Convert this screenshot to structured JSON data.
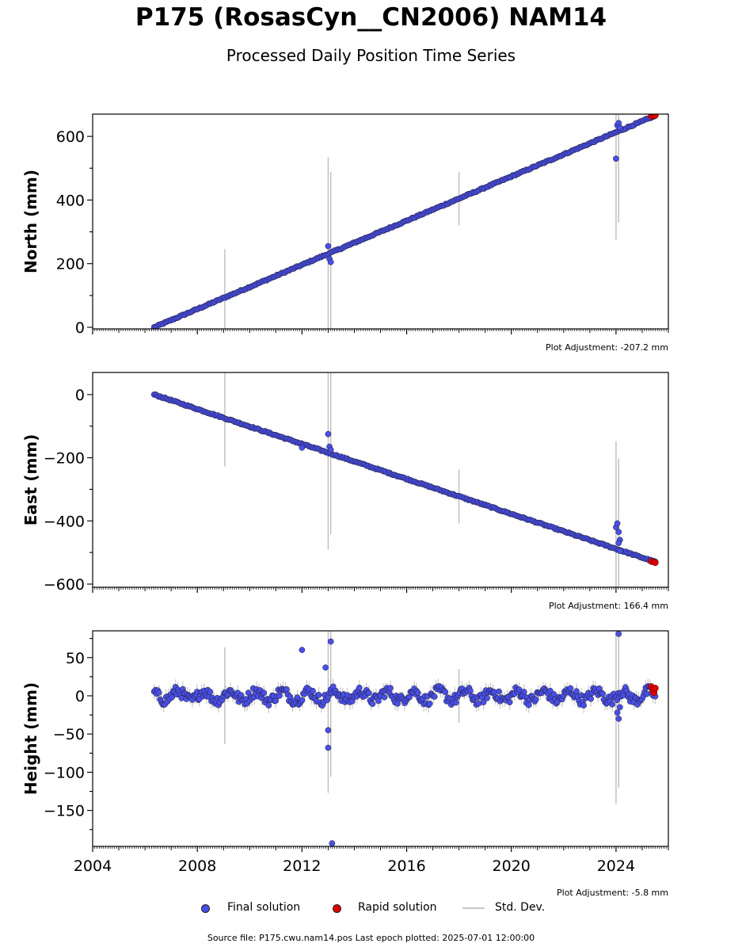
{
  "title": "P175 (RosasCyn__CN2006) NAM14",
  "subtitle": "Processed Daily Position Time Series",
  "footer": {
    "source": "Source file: P175.cwu.nam14.pos  Last epoch plotted: 2025-07-01 12:00:00"
  },
  "legend": {
    "final": "Final solution",
    "rapid": "Rapid solution",
    "std": "Std. Dev.",
    "placement": "bottom-center"
  },
  "colors": {
    "final": "#4a4fe6",
    "rapid": "#e00000",
    "std": "#c8c8c8",
    "edge": "#1a1a2e"
  },
  "chart_data": [
    {
      "type": "scatter",
      "ylabel": "North (mm)",
      "adjustment": "Plot Adjustment: -207.2 mm",
      "xlim": [
        2004.0,
        2026.0
      ],
      "ylim": [
        -5,
        670
      ],
      "yticks": [
        "0",
        "200",
        "400",
        "600"
      ],
      "trend": {
        "start": [
          2006.35,
          0
        ],
        "end": [
          2025.5,
          665
        ]
      },
      "outliers": [
        [
          2013.0,
          255
        ],
        [
          2013.05,
          215
        ],
        [
          2013.1,
          205
        ],
        [
          2024.0,
          530
        ],
        [
          2024.05,
          635
        ],
        [
          2024.1,
          642
        ],
        [
          2024.15,
          628
        ]
      ],
      "rapid": [
        [
          2025.35,
          664
        ],
        [
          2025.45,
          665
        ],
        [
          2025.5,
          666
        ]
      ]
    },
    {
      "type": "scatter",
      "ylabel": "East (mm)",
      "adjustment": "Plot Adjustment: 166.4 mm",
      "xlim": [
        2004.0,
        2026.0
      ],
      "ylim": [
        -610,
        70
      ],
      "yticks": [
        "0",
        "−200",
        "−400",
        "−600"
      ],
      "trend": {
        "start": [
          2006.35,
          0
        ],
        "end": [
          2025.5,
          -530
        ]
      },
      "outliers": [
        [
          2013.0,
          -125
        ],
        [
          2013.05,
          -165
        ],
        [
          2013.1,
          -175
        ],
        [
          2012.0,
          -168
        ],
        [
          2024.0,
          -420
        ],
        [
          2024.05,
          -408
        ],
        [
          2024.1,
          -435
        ],
        [
          2024.15,
          -460
        ],
        [
          2024.1,
          -470
        ],
        [
          2024.15,
          -495
        ]
      ],
      "rapid": [
        [
          2025.35,
          -528
        ],
        [
          2025.45,
          -530
        ],
        [
          2025.5,
          -532
        ]
      ]
    },
    {
      "type": "scatter",
      "ylabel": "Height (mm)",
      "adjustment": "Plot Adjustment: -5.8 mm",
      "xlim": [
        2004.0,
        2026.0
      ],
      "ylim": [
        -197,
        85
      ],
      "yticks": [
        "50",
        "0",
        "−50",
        "−100",
        "−150"
      ],
      "xticks": [
        "2004",
        "2008",
        "2012",
        "2016",
        "2020",
        "2024"
      ],
      "x_start": 2006.35,
      "x_end": 2025.5,
      "outliers": [
        [
          2012.0,
          60
        ],
        [
          2012.9,
          37
        ],
        [
          2013.1,
          71
        ],
        [
          2013.0,
          -45
        ],
        [
          2013.0,
          -68
        ],
        [
          2013.15,
          -193
        ],
        [
          2024.1,
          81
        ],
        [
          2024.05,
          -22
        ],
        [
          2024.1,
          -30
        ],
        [
          2024.15,
          -15
        ]
      ],
      "rapid": [
        [
          2025.35,
          12
        ],
        [
          2025.4,
          8
        ],
        [
          2025.45,
          4
        ],
        [
          2025.5,
          10
        ]
      ]
    }
  ]
}
